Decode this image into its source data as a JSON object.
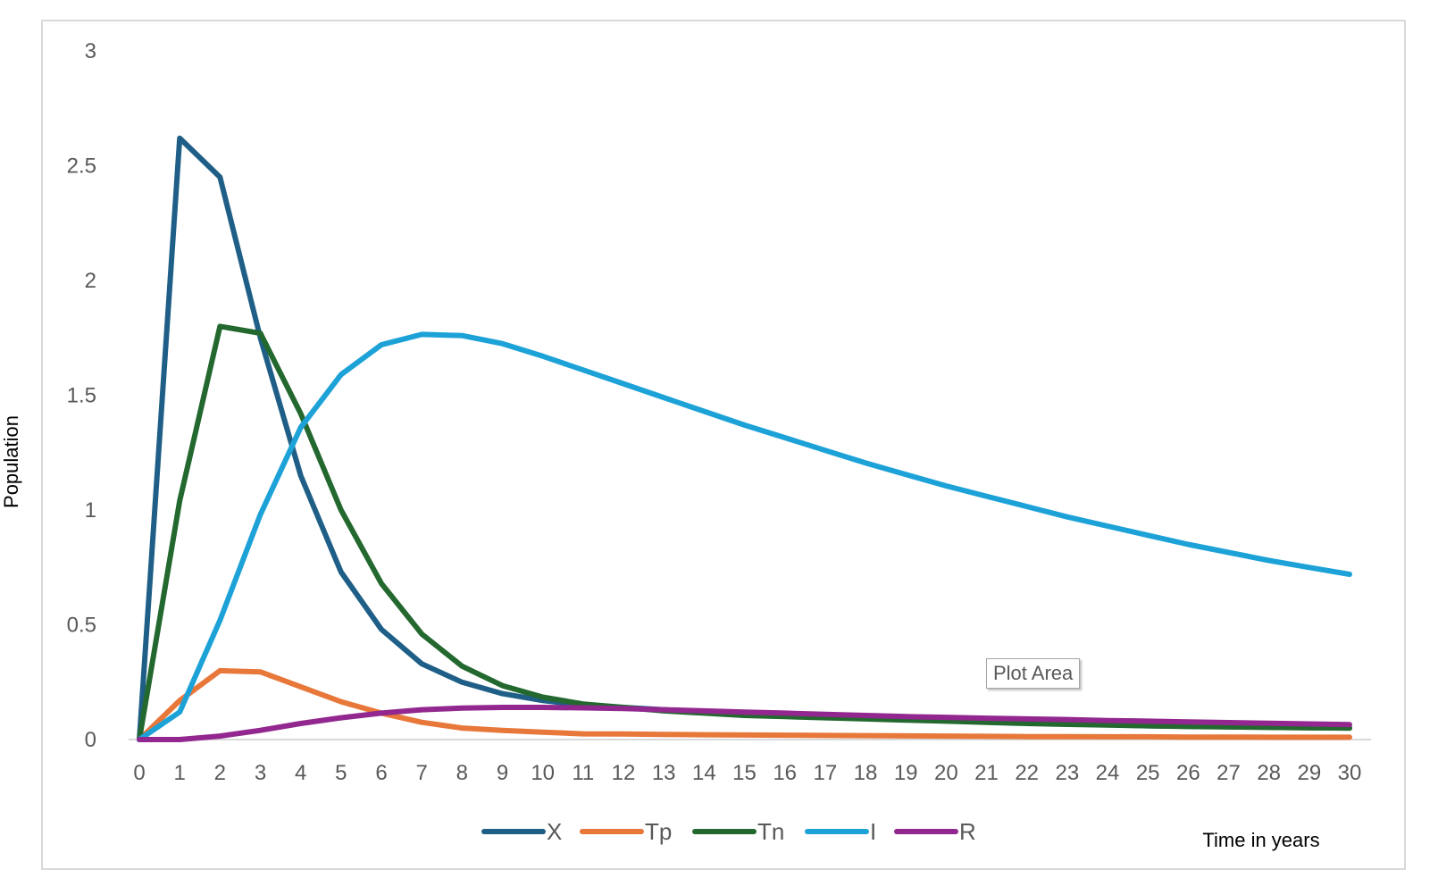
{
  "chart_data": {
    "type": "line",
    "title": "",
    "xlabel": "Time in years",
    "ylabel": "Population",
    "x": [
      0,
      1,
      2,
      3,
      4,
      5,
      6,
      7,
      8,
      9,
      10,
      11,
      12,
      13,
      14,
      15,
      16,
      17,
      18,
      19,
      20,
      21,
      22,
      23,
      24,
      25,
      26,
      27,
      28,
      29,
      30
    ],
    "ylim": [
      0,
      3
    ],
    "yticks": [
      0,
      0.5,
      1,
      1.5,
      2,
      2.5,
      3
    ],
    "ytick_labels": [
      "0",
      "0.5",
      "1",
      "1.5",
      "2",
      "2.5",
      "3"
    ],
    "grid": false,
    "legend_position": "bottom",
    "series": [
      {
        "name": "X",
        "color": "#1f5f87",
        "values": [
          0,
          2.62,
          2.45,
          1.75,
          1.15,
          0.73,
          0.48,
          0.33,
          0.25,
          0.2,
          0.17,
          0.15,
          0.14,
          0.13,
          0.12,
          0.11,
          0.105,
          0.1,
          0.095,
          0.09,
          0.085,
          0.08,
          0.075,
          0.07,
          0.065,
          0.06,
          0.058,
          0.056,
          0.054,
          0.052,
          0.05
        ]
      },
      {
        "name": "Tp",
        "color": "#e8773a",
        "values": [
          0,
          0.17,
          0.3,
          0.295,
          0.23,
          0.165,
          0.115,
          0.075,
          0.05,
          0.04,
          0.032,
          0.025,
          0.024,
          0.022,
          0.021,
          0.02,
          0.019,
          0.018,
          0.017,
          0.016,
          0.015,
          0.014,
          0.013,
          0.013,
          0.012,
          0.012,
          0.011,
          0.011,
          0.01,
          0.01,
          0.01
        ]
      },
      {
        "name": "Tn",
        "color": "#23682e",
        "values": [
          0,
          1.04,
          1.8,
          1.77,
          1.42,
          1.0,
          0.68,
          0.46,
          0.32,
          0.235,
          0.185,
          0.155,
          0.14,
          0.125,
          0.115,
          0.105,
          0.1,
          0.095,
          0.09,
          0.085,
          0.08,
          0.075,
          0.07,
          0.066,
          0.063,
          0.06,
          0.057,
          0.055,
          0.053,
          0.051,
          0.05
        ]
      },
      {
        "name": "I",
        "color": "#1da2d8",
        "values": [
          0,
          0.12,
          0.52,
          0.98,
          1.36,
          1.59,
          1.72,
          1.765,
          1.76,
          1.725,
          1.67,
          1.61,
          1.55,
          1.49,
          1.43,
          1.37,
          1.315,
          1.26,
          1.205,
          1.155,
          1.105,
          1.06,
          1.015,
          0.97,
          0.93,
          0.89,
          0.85,
          0.815,
          0.78,
          0.75,
          0.72
        ]
      },
      {
        "name": "R",
        "color": "#92278f",
        "values": [
          0,
          0.0,
          0.015,
          0.04,
          0.07,
          0.095,
          0.115,
          0.13,
          0.137,
          0.14,
          0.14,
          0.138,
          0.135,
          0.13,
          0.125,
          0.12,
          0.115,
          0.11,
          0.105,
          0.1,
          0.097,
          0.093,
          0.09,
          0.087,
          0.083,
          0.08,
          0.077,
          0.074,
          0.071,
          0.068,
          0.065
        ]
      }
    ]
  },
  "tooltip_text": "Plot Area"
}
